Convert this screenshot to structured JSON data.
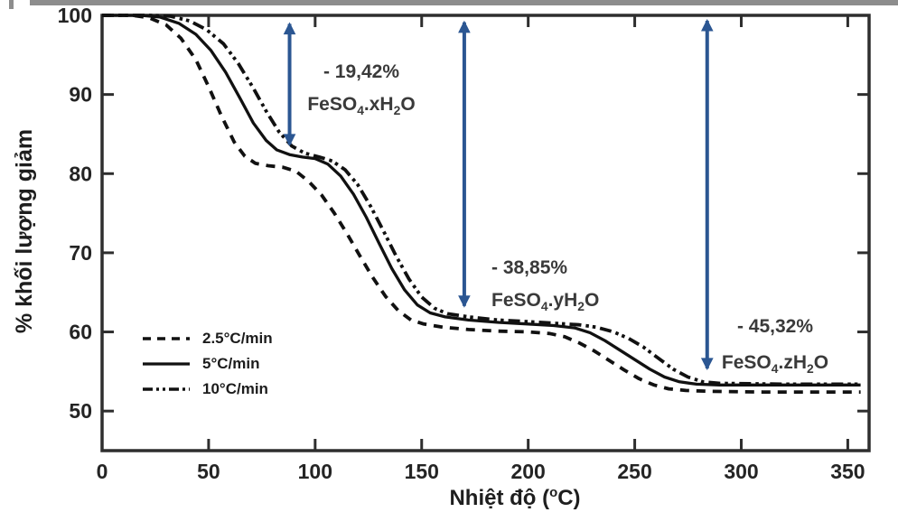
{
  "chart_data": {
    "type": "line",
    "title": "",
    "xlabel": "Nhiệt độ (oC)",
    "xlabel_segments": [
      {
        "t": "Nhiệt độ ("
      },
      {
        "t": "o",
        "sup": true
      },
      {
        "t": "C)"
      }
    ],
    "ylabel": "% khối lượng giảm",
    "xlim": [
      0,
      360
    ],
    "ylim": [
      45,
      100
    ],
    "x_ticks": [
      0,
      50,
      100,
      150,
      200,
      250,
      300,
      350
    ],
    "y_ticks": [
      50,
      60,
      70,
      80,
      90,
      100
    ],
    "grid": false,
    "legend_position": "inside-lower-left",
    "colors": {
      "curve": "#111111",
      "arrow": "#2b5692",
      "frame": "#2e2e2e",
      "text": "#242424"
    },
    "series": [
      {
        "id": "rate-2-5",
        "name": "2.5°C/min",
        "style": "dashed",
        "points": [
          [
            0,
            100
          ],
          [
            14,
            100
          ],
          [
            22,
            99.7
          ],
          [
            30,
            98.8
          ],
          [
            37,
            97.1
          ],
          [
            44,
            94.4
          ],
          [
            50,
            91.0
          ],
          [
            56,
            87.3
          ],
          [
            62,
            84.0
          ],
          [
            67,
            82.2
          ],
          [
            72,
            81.3
          ],
          [
            78,
            81.0
          ],
          [
            85,
            80.8
          ],
          [
            91,
            80.3
          ],
          [
            97,
            79.0
          ],
          [
            103,
            77.3
          ],
          [
            109,
            75.0
          ],
          [
            115,
            72.4
          ],
          [
            121,
            69.6
          ],
          [
            127,
            66.9
          ],
          [
            133,
            64.5
          ],
          [
            139,
            62.7
          ],
          [
            145,
            61.5
          ],
          [
            151,
            61.0
          ],
          [
            160,
            60.6
          ],
          [
            172,
            60.3
          ],
          [
            186,
            60.1
          ],
          [
            200,
            60.0
          ],
          [
            210,
            59.8
          ],
          [
            217,
            59.4
          ],
          [
            224,
            58.6
          ],
          [
            231,
            57.6
          ],
          [
            238,
            56.4
          ],
          [
            245,
            55.2
          ],
          [
            252,
            54.1
          ],
          [
            259,
            53.3
          ],
          [
            266,
            52.8
          ],
          [
            274,
            52.6
          ],
          [
            285,
            52.5
          ],
          [
            310,
            52.4
          ],
          [
            356,
            52.4
          ]
        ]
      },
      {
        "id": "rate-5",
        "name": "5°C/min",
        "style": "solid",
        "points": [
          [
            0,
            100
          ],
          [
            18,
            100
          ],
          [
            27,
            99.8
          ],
          [
            36,
            99.0
          ],
          [
            44,
            97.6
          ],
          [
            51,
            95.6
          ],
          [
            58,
            92.8
          ],
          [
            65,
            89.4
          ],
          [
            71,
            86.4
          ],
          [
            77,
            84.2
          ],
          [
            82,
            83.0
          ],
          [
            88,
            82.4
          ],
          [
            94,
            82.1
          ],
          [
            100,
            81.9
          ],
          [
            106,
            81.2
          ],
          [
            112,
            79.7
          ],
          [
            118,
            77.4
          ],
          [
            124,
            74.5
          ],
          [
            130,
            71.2
          ],
          [
            136,
            68.0
          ],
          [
            142,
            65.3
          ],
          [
            148,
            63.4
          ],
          [
            154,
            62.4
          ],
          [
            161,
            61.9
          ],
          [
            172,
            61.5
          ],
          [
            186,
            61.2
          ],
          [
            200,
            61.0
          ],
          [
            212,
            60.8
          ],
          [
            222,
            60.5
          ],
          [
            229,
            59.9
          ],
          [
            236,
            58.9
          ],
          [
            243,
            57.7
          ],
          [
            250,
            56.5
          ],
          [
            257,
            55.3
          ],
          [
            264,
            54.3
          ],
          [
            271,
            53.7
          ],
          [
            279,
            53.4
          ],
          [
            290,
            53.3
          ],
          [
            320,
            53.3
          ],
          [
            356,
            53.3
          ]
        ]
      },
      {
        "id": "rate-10",
        "name": "10°C/min",
        "style": "dashdotdot",
        "points": [
          [
            0,
            100
          ],
          [
            22,
            100
          ],
          [
            32,
            99.9
          ],
          [
            41,
            99.3
          ],
          [
            49,
            98.2
          ],
          [
            57,
            96.4
          ],
          [
            64,
            93.9
          ],
          [
            71,
            90.8
          ],
          [
            77,
            87.9
          ],
          [
            83,
            85.3
          ],
          [
            89,
            83.5
          ],
          [
            95,
            82.6
          ],
          [
            102,
            82.1
          ],
          [
            108,
            81.6
          ],
          [
            114,
            80.5
          ],
          [
            120,
            78.6
          ],
          [
            126,
            75.9
          ],
          [
            132,
            72.8
          ],
          [
            138,
            69.6
          ],
          [
            144,
            66.7
          ],
          [
            150,
            64.4
          ],
          [
            156,
            63.0
          ],
          [
            162,
            62.3
          ],
          [
            172,
            61.9
          ],
          [
            186,
            61.5
          ],
          [
            200,
            61.3
          ],
          [
            212,
            61.1
          ],
          [
            224,
            60.9
          ],
          [
            232,
            60.6
          ],
          [
            240,
            60.0
          ],
          [
            247,
            59.2
          ],
          [
            254,
            58.1
          ],
          [
            261,
            56.7
          ],
          [
            268,
            55.3
          ],
          [
            275,
            54.3
          ],
          [
            282,
            53.7
          ],
          [
            290,
            53.5
          ],
          [
            320,
            53.4
          ],
          [
            356,
            53.4
          ]
        ]
      }
    ],
    "annotations": [
      {
        "pct": "- 19,42%",
        "formula_text": "FeSO4.xH2O",
        "formula": [
          {
            "t": "FeSO"
          },
          {
            "t": "4",
            "sub": true
          },
          {
            "t": ".xH"
          },
          {
            "t": "2",
            "sub": true
          },
          {
            "t": "O"
          }
        ],
        "arrow": {
          "t": 88,
          "from_pct": 99.6,
          "to_pct": 83.0
        }
      },
      {
        "pct": "- 38,85%",
        "formula_text": "FeSO4.yH2O",
        "formula": [
          {
            "t": "FeSO"
          },
          {
            "t": "4",
            "sub": true
          },
          {
            "t": ".yH"
          },
          {
            "t": "2",
            "sub": true
          },
          {
            "t": "O"
          }
        ],
        "arrow": {
          "t": 170,
          "from_pct": 99.8,
          "to_pct": 62.6
        }
      },
      {
        "pct": "- 45,32%",
        "formula_text": "FeSO4.zH2O",
        "formula": [
          {
            "t": "FeSO"
          },
          {
            "t": "4",
            "sub": true
          },
          {
            "t": ".zH"
          },
          {
            "t": "2",
            "sub": true
          },
          {
            "t": "O"
          }
        ],
        "arrow": {
          "t": 284,
          "from_pct": 100,
          "to_pct": 54.7
        }
      }
    ]
  }
}
